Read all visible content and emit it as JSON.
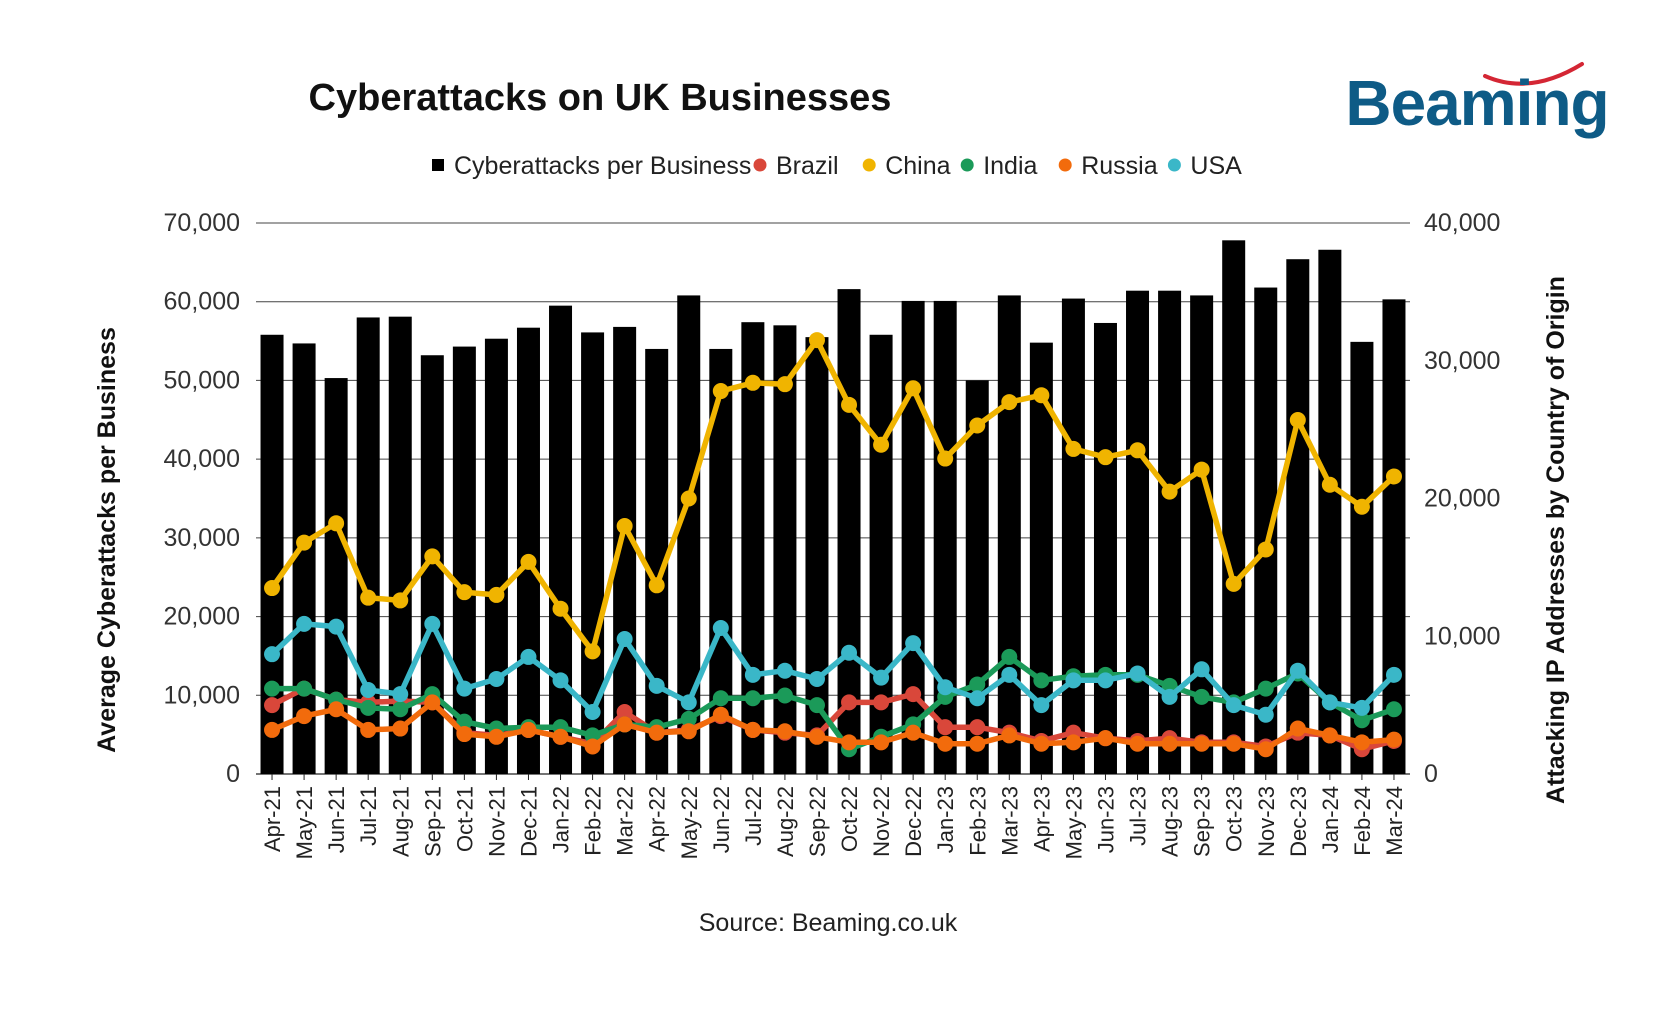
{
  "chart_data": {
    "type": "bar",
    "title": "Cyberattacks on UK Businesses",
    "source": "Source: Beaming.co.uk",
    "logo_text": "Beaming",
    "ylabel_left": "Average Cyberattacks per Business",
    "ylabel_right": "Attacking IP Addresses by Country of Origin",
    "ylim_left": [
      0,
      70000
    ],
    "ylim_right": [
      0,
      40000
    ],
    "yticks_left": [
      "0",
      "10,000",
      "20,000",
      "30,000",
      "40,000",
      "50,000",
      "60,000",
      "70,000"
    ],
    "yticks_right": [
      "0",
      "10,000",
      "20,000",
      "30,000",
      "40,000"
    ],
    "grid": true,
    "legend_position": "top",
    "categories": [
      "Apr-21",
      "May-21",
      "Jun-21",
      "Jul-21",
      "Aug-21",
      "Sep-21",
      "Oct-21",
      "Nov-21",
      "Dec-21",
      "Jan-22",
      "Feb-22",
      "Mar-22",
      "Apr-22",
      "May-22",
      "Jun-22",
      "Jul-22",
      "Aug-22",
      "Sep-22",
      "Oct-22",
      "Nov-22",
      "Dec-22",
      "Jan-23",
      "Feb-23",
      "Mar-23",
      "Apr-23",
      "May-23",
      "Jun-23",
      "Jul-23",
      "Aug-23",
      "Sep-23",
      "Oct-23",
      "Nov-23",
      "Dec-23",
      "Jan-24",
      "Feb-24",
      "Mar-24"
    ],
    "bar_series": {
      "name": "Cyberattacks per Business",
      "axis": "left",
      "color": "#000000",
      "values": [
        55800,
        54700,
        50300,
        58000,
        58100,
        53200,
        54300,
        55300,
        56700,
        59500,
        56100,
        56800,
        54000,
        60800,
        54000,
        57400,
        57000,
        55500,
        61600,
        55800,
        60100,
        60100,
        50000,
        60800,
        54800,
        60400,
        57300,
        61400,
        61400,
        60800,
        67800,
        61800,
        65400,
        66600,
        54900,
        60300
      ]
    },
    "line_series": [
      {
        "name": "Brazil",
        "axis": "right",
        "color": "#d9473a",
        "values": [
          5000,
          6200,
          5400,
          5200,
          5300,
          5200,
          3000,
          2800,
          3200,
          2700,
          2200,
          4500,
          3000,
          3200,
          4200,
          3200,
          3000,
          2800,
          5200,
          5200,
          5800,
          3400,
          3400,
          3000,
          2400,
          3000,
          2600,
          2400,
          2600,
          2300,
          2300,
          2000,
          3000,
          2800,
          1800,
          2400
        ]
      },
      {
        "name": "China",
        "axis": "right",
        "color": "#f0b400",
        "values": [
          13500,
          16800,
          18200,
          12800,
          12600,
          15800,
          13200,
          13000,
          15400,
          12000,
          8900,
          18000,
          13700,
          20000,
          27800,
          28400,
          28300,
          31500,
          26800,
          23900,
          28000,
          22900,
          25300,
          27000,
          27500,
          23600,
          23000,
          23500,
          20500,
          22100,
          13800,
          16300,
          25700,
          21000,
          19400,
          21600
        ]
      },
      {
        "name": "India",
        "axis": "right",
        "color": "#1b9a59",
        "values": [
          6200,
          6200,
          5400,
          4800,
          4700,
          5800,
          3800,
          3300,
          3400,
          3400,
          2800,
          3600,
          3400,
          4000,
          5500,
          5500,
          5700,
          5000,
          1800,
          2700,
          3600,
          5600,
          6500,
          8500,
          6800,
          7100,
          7200,
          7200,
          6400,
          5600,
          5200,
          6200,
          7300,
          5200,
          3900,
          4700
        ]
      },
      {
        "name": "Russia",
        "axis": "right",
        "color": "#f26b0c",
        "values": [
          3200,
          4200,
          4700,
          3200,
          3300,
          5200,
          2900,
          2700,
          3200,
          2700,
          2000,
          3600,
          3000,
          3100,
          4300,
          3200,
          3100,
          2700,
          2300,
          2300,
          3000,
          2200,
          2200,
          2800,
          2200,
          2300,
          2600,
          2200,
          2200,
          2200,
          2200,
          1800,
          3300,
          2800,
          2300,
          2500
        ]
      },
      {
        "name": "USA",
        "axis": "right",
        "color": "#3ab7c8",
        "values": [
          8700,
          10900,
          10700,
          6100,
          5800,
          10900,
          6200,
          6900,
          8500,
          6800,
          4500,
          9800,
          6400,
          5200,
          10600,
          7200,
          7500,
          6900,
          8800,
          7000,
          9500,
          6300,
          5500,
          7200,
          5000,
          6800,
          6800,
          7300,
          5600,
          7600,
          5000,
          4300,
          7500,
          5200,
          4800,
          7200
        ]
      }
    ]
  }
}
